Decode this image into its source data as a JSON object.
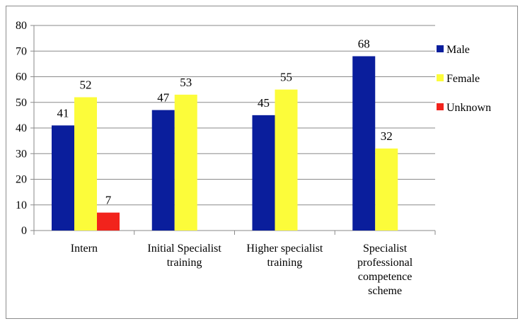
{
  "chart_data": {
    "type": "bar",
    "categories": [
      [
        "Intern"
      ],
      [
        "Initial Specialist",
        "training"
      ],
      [
        "Higher specialist",
        "training"
      ],
      [
        "Specialist",
        "professional",
        "competence",
        "scheme"
      ]
    ],
    "series": [
      {
        "name": "Male",
        "color": "#0a1e9c",
        "values": [
          41,
          47,
          45,
          68
        ]
      },
      {
        "name": "Female",
        "color": "#fcfc3a",
        "values": [
          52,
          53,
          55,
          32
        ]
      },
      {
        "name": "Unknown",
        "color": "#f2231c",
        "values": [
          7,
          null,
          null,
          null
        ]
      }
    ],
    "ylim": [
      0,
      80
    ],
    "yticks": [
      0,
      10,
      20,
      30,
      40,
      50,
      60,
      70,
      80
    ],
    "grid": true,
    "legend_position": "right",
    "title": "",
    "xlabel": "",
    "ylabel": ""
  }
}
